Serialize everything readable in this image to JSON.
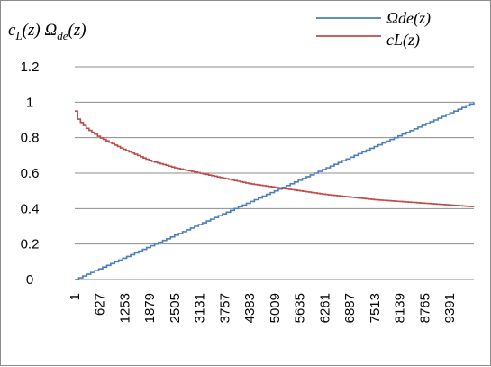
{
  "chart_data": {
    "type": "line",
    "ylabel": {
      "part1_main": "c",
      "part1_sub": "L",
      "part1_tail": "(z) ",
      "part2_main": "Ω",
      "part2_sub": "de",
      "part2_tail": "(z)"
    },
    "ylim": [
      0,
      1.2
    ],
    "y_ticks": [
      "0",
      "0.2",
      "0.4",
      "0.6",
      "0.8",
      "1",
      "1.2"
    ],
    "x_ticks": [
      "1",
      "627",
      "1253",
      "1879",
      "2505",
      "3131",
      "3757",
      "4383",
      "5009",
      "5635",
      "6261",
      "6887",
      "7513",
      "8139",
      "8765",
      "9391"
    ],
    "xlim": [
      1,
      10000
    ],
    "grid": "horizontal",
    "legend_position": "top-right",
    "series": [
      {
        "name": "Ωde(z)",
        "color": "#4a7ebb",
        "kind": "linear",
        "x": [
          1,
          10000
        ],
        "y": [
          0.0,
          1.0
        ]
      },
      {
        "name": "cL(z)",
        "color": "#be4b48",
        "kind": "curve",
        "x": [
          1,
          80,
          300,
          627,
          1253,
          1879,
          2505,
          3131,
          3757,
          4383,
          5009,
          5635,
          6261,
          6887,
          7513,
          8139,
          8765,
          9391,
          10000
        ],
        "y": [
          0.95,
          0.9,
          0.85,
          0.8,
          0.73,
          0.67,
          0.63,
          0.6,
          0.57,
          0.54,
          0.52,
          0.5,
          0.48,
          0.465,
          0.45,
          0.44,
          0.43,
          0.42,
          0.41
        ]
      }
    ]
  }
}
